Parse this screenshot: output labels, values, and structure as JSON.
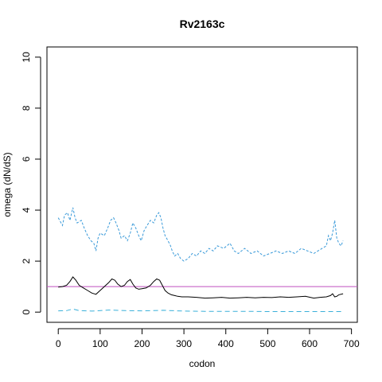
{
  "chart_data": {
    "type": "line",
    "title": "Rv2163c",
    "xlabel": "codon",
    "ylabel": "omega (dN/dS)",
    "xlim": [
      -27,
      714
    ],
    "ylim": [
      -0.4,
      10.4
    ],
    "xticks": [
      0,
      100,
      200,
      300,
      400,
      500,
      600,
      700
    ],
    "yticks": [
      0,
      2,
      4,
      6,
      8,
      10
    ],
    "grid": false,
    "legend": "none",
    "reference_line": {
      "y": 1,
      "color": "#bf4fbf"
    },
    "series": [
      {
        "role": "upper",
        "color": "#3a9ad9",
        "dash": "3,2",
        "x": [
          0,
          10,
          15,
          22,
          28,
          35,
          40,
          45,
          55,
          62,
          70,
          78,
          85,
          90,
          95,
          100,
          110,
          118,
          125,
          132,
          138,
          145,
          150,
          158,
          165,
          172,
          178,
          185,
          192,
          198,
          205,
          212,
          220,
          228,
          235,
          240,
          245,
          250,
          255,
          262,
          268,
          272,
          278,
          285,
          292,
          300,
          310,
          320,
          330,
          340,
          350,
          360,
          370,
          380,
          395,
          410,
          420,
          430,
          445,
          460,
          475,
          490,
          505,
          520,
          535,
          550,
          565,
          580,
          595,
          610,
          620,
          630,
          640,
          645,
          650,
          655,
          660,
          665,
          670,
          675,
          680
        ],
        "y": [
          3.7,
          3.4,
          3.8,
          3.9,
          3.6,
          4.1,
          3.7,
          3.5,
          3.6,
          3.3,
          3.0,
          2.8,
          2.7,
          2.4,
          2.9,
          3.1,
          3.0,
          3.3,
          3.6,
          3.7,
          3.5,
          3.2,
          2.9,
          3.0,
          2.8,
          3.1,
          3.5,
          3.3,
          3.0,
          2.8,
          3.2,
          3.4,
          3.6,
          3.5,
          3.8,
          3.9,
          3.7,
          3.3,
          3.0,
          2.8,
          2.6,
          2.4,
          2.2,
          2.3,
          2.1,
          2.0,
          2.1,
          2.3,
          2.2,
          2.4,
          2.3,
          2.5,
          2.4,
          2.6,
          2.5,
          2.7,
          2.4,
          2.3,
          2.5,
          2.3,
          2.4,
          2.2,
          2.3,
          2.4,
          2.3,
          2.4,
          2.3,
          2.5,
          2.4,
          2.3,
          2.4,
          2.5,
          2.6,
          3.0,
          2.8,
          3.1,
          3.6,
          2.9,
          2.7,
          2.6,
          2.8
        ]
      },
      {
        "role": "mean",
        "color": "#000000",
        "dash": "",
        "x": [
          0,
          10,
          20,
          28,
          35,
          42,
          50,
          60,
          70,
          80,
          90,
          100,
          110,
          120,
          128,
          135,
          142,
          150,
          158,
          165,
          172,
          178,
          185,
          192,
          200,
          210,
          220,
          228,
          235,
          242,
          250,
          255,
          262,
          270,
          278,
          285,
          295,
          310,
          330,
          350,
          370,
          390,
          410,
          430,
          450,
          470,
          490,
          510,
          530,
          550,
          570,
          590,
          610,
          625,
          640,
          650,
          655,
          660,
          665,
          670,
          680
        ],
        "y": [
          0.98,
          1.0,
          1.05,
          1.2,
          1.38,
          1.25,
          1.05,
          0.95,
          0.85,
          0.75,
          0.7,
          0.85,
          1.0,
          1.15,
          1.3,
          1.25,
          1.1,
          1.0,
          1.05,
          1.2,
          1.28,
          1.1,
          0.95,
          0.9,
          0.92,
          0.95,
          1.05,
          1.2,
          1.3,
          1.25,
          1.0,
          0.85,
          0.75,
          0.68,
          0.65,
          0.62,
          0.6,
          0.6,
          0.58,
          0.55,
          0.56,
          0.58,
          0.55,
          0.56,
          0.58,
          0.56,
          0.58,
          0.57,
          0.6,
          0.58,
          0.6,
          0.62,
          0.55,
          0.58,
          0.6,
          0.65,
          0.72,
          0.6,
          0.62,
          0.68,
          0.72
        ]
      },
      {
        "role": "lower",
        "color": "#3ab0d9",
        "dash": "6,4",
        "x": [
          0,
          20,
          35,
          50,
          80,
          120,
          160,
          200,
          250,
          300,
          350,
          400,
          450,
          500,
          550,
          600,
          650,
          680
        ],
        "y": [
          0.05,
          0.06,
          0.12,
          0.06,
          0.04,
          0.08,
          0.06,
          0.05,
          0.07,
          0.04,
          0.03,
          0.03,
          0.03,
          0.02,
          0.02,
          0.02,
          0.02,
          0.02
        ]
      }
    ]
  }
}
